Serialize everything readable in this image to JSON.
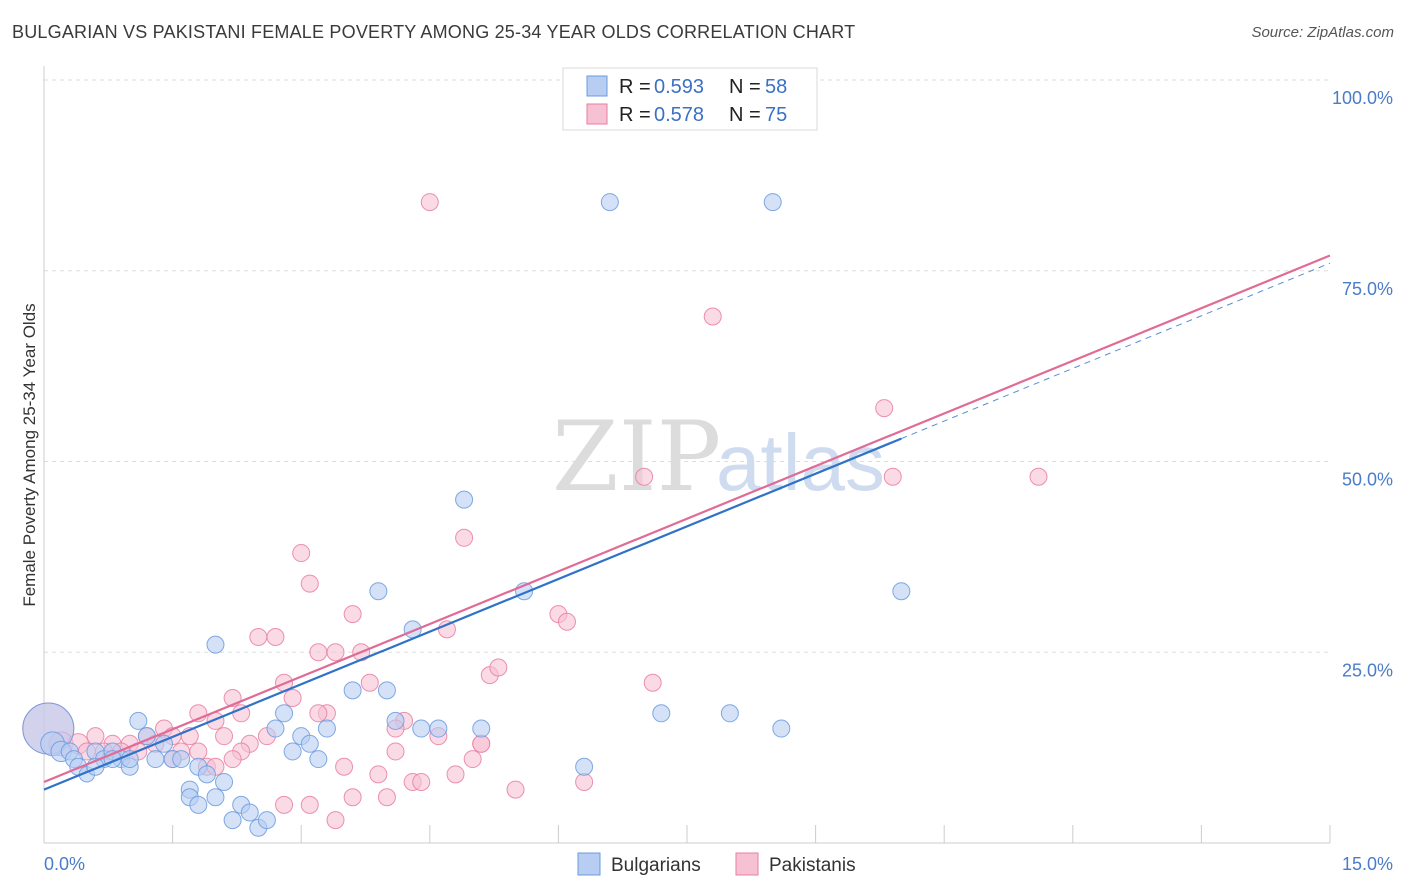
{
  "title": "BULGARIAN VS PAKISTANI FEMALE POVERTY AMONG 25-34 YEAR OLDS CORRELATION CHART",
  "source": "Source: ZipAtlas.com",
  "watermark": {
    "zip": "ZIP",
    "atlas": "atlas"
  },
  "colors": {
    "bulgarians": "#6a9be0",
    "bulgarians_fill": "#b7cdf1",
    "pakistanis": "#e97ea2",
    "pakistanis_fill": "#f6c2d3",
    "bulgarians_line": "#2f72c8",
    "pakistanis_line": "#e06b96",
    "tick_text": "#4a7cc8"
  },
  "legend_top": {
    "rows": [
      {
        "r_label": "R =",
        "r_value": "0.593",
        "n_label": "N =",
        "n_value": "58"
      },
      {
        "r_label": "R =",
        "r_value": "0.578",
        "n_label": "N =",
        "n_value": "75"
      }
    ]
  },
  "chart_data": {
    "type": "scatter",
    "title": "BULGARIAN VS PAKISTANI FEMALE POVERTY AMONG 25-34 YEAR OLDS CORRELATION CHART",
    "xlabel": "",
    "ylabel": "Female Poverty Among 25-34 Year Olds",
    "xlim": [
      0,
      15
    ],
    "ylim": [
      0,
      100
    ],
    "x_tick_labels": [
      "0.0%",
      "15.0%"
    ],
    "y_tick_labels": [
      "25.0%",
      "50.0%",
      "75.0%",
      "100.0%"
    ],
    "y_ticks": [
      25,
      50,
      75,
      100
    ],
    "grid": true,
    "legend_position": "bottom-center",
    "series": [
      {
        "name": "Bulgarians",
        "trend": {
          "x": [
            0,
            10
          ],
          "y": [
            7,
            53
          ]
        },
        "points": [
          [
            0.05,
            15,
            30
          ],
          [
            0.1,
            13,
            14
          ],
          [
            0.2,
            12,
            12
          ],
          [
            0.3,
            12,
            10
          ],
          [
            0.35,
            11,
            10
          ],
          [
            0.4,
            10,
            10
          ],
          [
            0.5,
            9,
            9
          ],
          [
            0.6,
            12,
            10
          ],
          [
            0.7,
            11,
            10
          ],
          [
            0.8,
            12,
            10
          ],
          [
            0.9,
            11,
            10
          ],
          [
            1.0,
            10,
            10
          ],
          [
            1.1,
            16,
            10
          ],
          [
            1.2,
            14,
            10
          ],
          [
            1.3,
            11,
            10
          ],
          [
            1.4,
            13,
            10
          ],
          [
            1.5,
            11,
            10
          ],
          [
            1.6,
            11,
            10
          ],
          [
            1.7,
            7,
            10
          ],
          [
            1.8,
            10,
            10
          ],
          [
            1.9,
            9,
            10
          ],
          [
            2.0,
            6,
            10
          ],
          [
            2.1,
            8,
            10
          ],
          [
            2.2,
            3,
            10
          ],
          [
            2.3,
            5,
            10
          ],
          [
            2.4,
            4,
            10
          ],
          [
            2.5,
            2,
            10
          ],
          [
            2.6,
            3,
            10
          ],
          [
            1.7,
            6,
            10
          ],
          [
            1.8,
            5,
            10
          ],
          [
            2.0,
            26,
            10
          ],
          [
            2.7,
            15,
            10
          ],
          [
            2.8,
            17,
            10
          ],
          [
            2.9,
            12,
            10
          ],
          [
            3.0,
            14,
            10
          ],
          [
            3.1,
            13,
            10
          ],
          [
            3.2,
            11,
            10
          ],
          [
            3.3,
            15,
            10
          ],
          [
            3.6,
            20,
            10
          ],
          [
            4.0,
            20,
            10
          ],
          [
            4.1,
            16,
            10
          ],
          [
            3.9,
            33,
            10
          ],
          [
            4.3,
            28,
            10
          ],
          [
            4.4,
            15,
            10
          ],
          [
            4.6,
            15,
            10
          ],
          [
            4.9,
            45,
            10
          ],
          [
            5.1,
            15,
            10
          ],
          [
            5.6,
            33,
            10
          ],
          [
            6.3,
            10,
            10
          ],
          [
            6.6,
            84,
            10
          ],
          [
            7.2,
            17,
            10
          ],
          [
            8.0,
            17,
            10
          ],
          [
            8.5,
            84,
            10
          ],
          [
            8.6,
            15,
            10
          ],
          [
            10.0,
            33,
            10
          ],
          [
            0.6,
            10,
            10
          ],
          [
            1.0,
            11,
            10
          ],
          [
            0.8,
            11,
            10
          ]
        ]
      },
      {
        "name": "Pakistanis",
        "trend": {
          "x": [
            0,
            15
          ],
          "y": [
            8,
            77
          ]
        },
        "points": [
          [
            0.05,
            15,
            30
          ],
          [
            0.2,
            13,
            14
          ],
          [
            0.4,
            13,
            12
          ],
          [
            0.6,
            14,
            10
          ],
          [
            0.8,
            13,
            10
          ],
          [
            1.0,
            13,
            10
          ],
          [
            1.2,
            14,
            10
          ],
          [
            1.3,
            13,
            10
          ],
          [
            1.4,
            15,
            10
          ],
          [
            1.5,
            14,
            10
          ],
          [
            1.6,
            12,
            10
          ],
          [
            1.7,
            14,
            10
          ],
          [
            1.8,
            12,
            10
          ],
          [
            1.9,
            10,
            10
          ],
          [
            2.0,
            16,
            10
          ],
          [
            2.1,
            14,
            10
          ],
          [
            2.2,
            19,
            10
          ],
          [
            2.3,
            17,
            10
          ],
          [
            2.4,
            13,
            10
          ],
          [
            2.5,
            27,
            10
          ],
          [
            2.6,
            14,
            10
          ],
          [
            2.7,
            27,
            10
          ],
          [
            2.8,
            21,
            10
          ],
          [
            2.9,
            19,
            10
          ],
          [
            3.0,
            38,
            10
          ],
          [
            3.1,
            34,
            10
          ],
          [
            3.2,
            25,
            10
          ],
          [
            3.3,
            17,
            10
          ],
          [
            3.4,
            25,
            10
          ],
          [
            3.5,
            10,
            10
          ],
          [
            3.6,
            30,
            10
          ],
          [
            3.7,
            25,
            10
          ],
          [
            3.8,
            21,
            10
          ],
          [
            3.9,
            9,
            10
          ],
          [
            4.0,
            6,
            10
          ],
          [
            4.1,
            12,
            10
          ],
          [
            4.2,
            16,
            10
          ],
          [
            4.3,
            8,
            10
          ],
          [
            4.4,
            8,
            10
          ],
          [
            4.5,
            84,
            10
          ],
          [
            4.6,
            14,
            10
          ],
          [
            4.7,
            28,
            10
          ],
          [
            4.8,
            9,
            10
          ],
          [
            4.9,
            40,
            10
          ],
          [
            5.0,
            11,
            10
          ],
          [
            5.1,
            13,
            10
          ],
          [
            5.2,
            22,
            10
          ],
          [
            5.3,
            23,
            10
          ],
          [
            5.5,
            7,
            10
          ],
          [
            6.0,
            30,
            10
          ],
          [
            6.1,
            29,
            10
          ],
          [
            6.3,
            8,
            10
          ],
          [
            6.5,
            100,
            10
          ],
          [
            7.0,
            48,
            10
          ],
          [
            7.1,
            21,
            10
          ],
          [
            7.8,
            69,
            10
          ],
          [
            9.8,
            57,
            10
          ],
          [
            9.9,
            48,
            10
          ],
          [
            11.6,
            48,
            10
          ],
          [
            2.8,
            5,
            10
          ],
          [
            3.1,
            5,
            10
          ],
          [
            3.4,
            3,
            10
          ],
          [
            3.6,
            6,
            10
          ],
          [
            2.3,
            12,
            10
          ],
          [
            2.0,
            10,
            10
          ],
          [
            1.5,
            11,
            10
          ],
          [
            1.1,
            12,
            10
          ],
          [
            0.9,
            12,
            10
          ],
          [
            0.7,
            12,
            10
          ],
          [
            0.5,
            12,
            10
          ],
          [
            3.2,
            17,
            10
          ],
          [
            2.2,
            11,
            10
          ],
          [
            1.8,
            17,
            10
          ],
          [
            4.1,
            15,
            10
          ],
          [
            5.1,
            13,
            10
          ]
        ]
      }
    ]
  },
  "legend_bottom": {
    "items": [
      "Bulgarians",
      "Pakistanis"
    ]
  }
}
